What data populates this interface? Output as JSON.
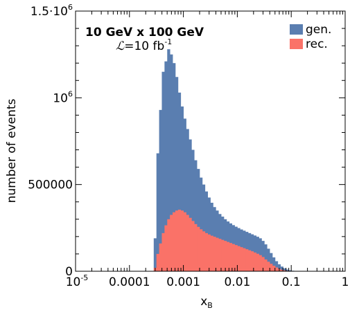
{
  "chart_data": {
    "type": "bar",
    "x_scale": "log",
    "xlim": [
      1e-05,
      1
    ],
    "ylim": [
      0,
      1500000
    ],
    "xlabel": "x",
    "xlabel_sub": "B",
    "ylabel": "number of events",
    "annotation_title": "10 GeV x 100 GeV",
    "annotation_lumi_symbol": "ℒ",
    "annotation_lumi_text": "=10 fb",
    "annotation_lumi_sup": "-1",
    "legend_position": "top-right",
    "x_ticks": [
      {
        "value": 1e-05,
        "base": "10",
        "exp": "-5"
      },
      {
        "value": 0.0001,
        "label": "0.0001"
      },
      {
        "value": 0.001,
        "label": "0.001"
      },
      {
        "value": 0.01,
        "label": "0.01"
      },
      {
        "value": 0.1,
        "label": "0.1"
      },
      {
        "value": 1,
        "label": "1"
      }
    ],
    "y_ticks": [
      {
        "value": 0,
        "label": "0"
      },
      {
        "value": 500000,
        "label": "500000"
      },
      {
        "value": 1000000,
        "base": "10",
        "exp": "6"
      },
      {
        "value": 1500000,
        "base": "1.5·10",
        "exp": "6"
      }
    ],
    "bins_per_decade": 20,
    "bin_start_exponent": -3.55,
    "series": [
      {
        "name": "gen.",
        "color": "#5a7eb0",
        "values": [
          190000,
          680000,
          930000,
          1150000,
          1210000,
          1280000,
          1250000,
          1200000,
          1120000,
          1030000,
          950000,
          880000,
          820000,
          760000,
          700000,
          640000,
          590000,
          540000,
          500000,
          460000,
          425000,
          395000,
          370000,
          350000,
          330000,
          315000,
          300000,
          287000,
          276000,
          266000,
          257000,
          249000,
          241000,
          234000,
          227000,
          220000,
          213000,
          206000,
          199000,
          190000,
          175000,
          155000,
          130000,
          105000,
          80000,
          58000,
          40000,
          27000,
          17000,
          10000,
          5500,
          3000,
          1500,
          700,
          300
        ]
      },
      {
        "name": "rec.",
        "color": "#fa7268",
        "values": [
          20000,
          100000,
          160000,
          220000,
          265000,
          300000,
          325000,
          340000,
          350000,
          355000,
          350000,
          340000,
          325000,
          308000,
          290000,
          272000,
          256000,
          242000,
          230000,
          220000,
          212000,
          205000,
          199000,
          193000,
          187000,
          181000,
          175000,
          169000,
          163000,
          157000,
          151000,
          145000,
          139000,
          133000,
          127000,
          121000,
          115000,
          108000,
          101000,
          93000,
          82000,
          68000,
          55000,
          43000,
          32000,
          22000,
          14000,
          8500,
          5000,
          2800,
          1500,
          800,
          400,
          200,
          100
        ]
      }
    ]
  }
}
